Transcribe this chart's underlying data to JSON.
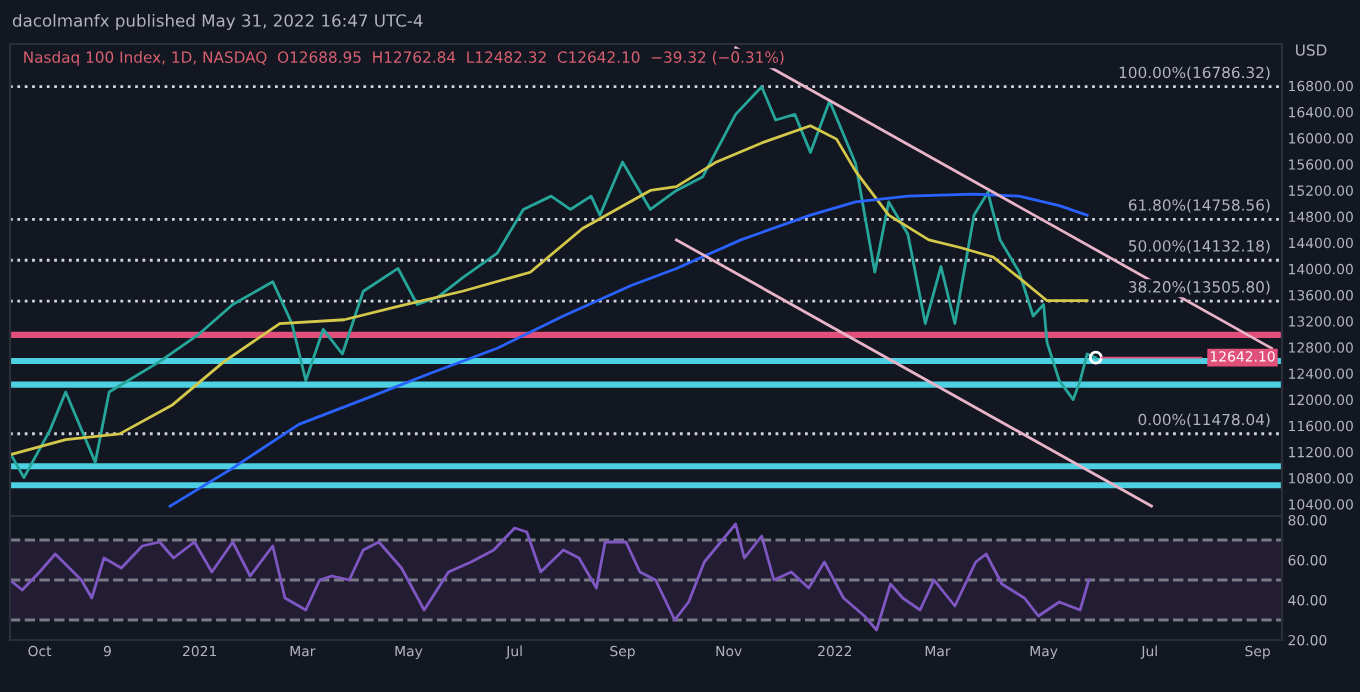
{
  "chart_data": [
    {
      "type": "line",
      "title": "Nasdaq 100 Index, 1D, NASDAQ  O12688.95  H12762.84  L12482.32  C12642.10  −39.32 (−0.31%)",
      "ylabel": "USD",
      "annotations": [
        "dacolmanfx published May 31, 2022 16:47 UTC-4",
        {
          "text": "12642.10",
          "x": "2022-05-31",
          "y": 12642.1
        }
      ],
      "series": [
        {
          "color": "#26a69a",
          "x": [
            "2020-09-14",
            "2020-09-22",
            "2020-10-07",
            "2020-10-16",
            "2020-11-02",
            "2020-11-10",
            "2020-12-09",
            "2020-12-31",
            "2021-01-20",
            "2021-02-12",
            "2021-02-23",
            "2021-03-03",
            "2021-03-13",
            "2021-03-24",
            "2021-04-05",
            "2021-04-25",
            "2021-05-06",
            "2021-05-18",
            "2021-06-01",
            "2021-06-21",
            "2021-07-06",
            "2021-07-22",
            "2021-08-02",
            "2021-08-14",
            "2021-08-19",
            "2021-09-01",
            "2021-09-17",
            "2021-10-02",
            "2021-10-17",
            "2021-11-05",
            "2021-11-20",
            "2021-11-28",
            "2021-12-09",
            "2021-12-18",
            "2021-12-29",
            "2022-01-13",
            "2022-01-24",
            "2022-02-01",
            "2022-02-12",
            "2022-02-22",
            "2022-03-03",
            "2022-03-11",
            "2022-03-22",
            "2022-03-30",
            "2022-04-06",
            "2022-04-17",
            "2022-04-25",
            "2022-05-01",
            "2022-05-03",
            "2022-05-10",
            "2022-05-18",
            "2022-05-22",
            "2022-05-26",
            "2022-05-31"
          ],
          "values": [
            11185,
            10807,
            11534,
            12116,
            11040,
            12116,
            12582,
            12989,
            13455,
            13804,
            13164,
            12291,
            13076,
            12698,
            13658,
            14007,
            13455,
            13571,
            13862,
            14240,
            14909,
            15113,
            14909,
            15113,
            14822,
            15636,
            14909,
            15200,
            15404,
            16364,
            16786,
            16277,
            16364,
            15782,
            16567,
            15607,
            13949,
            15025,
            14531,
            13164,
            14036,
            13164,
            14822,
            15171,
            14444,
            13949,
            13280,
            13455,
            12873,
            12291,
            12000,
            12291,
            12698,
            12642
          ]
        },
        {
          "color": "#d4c84a",
          "x": [
            "2020-09-14",
            "2020-10-16",
            "2020-11-16",
            "2020-12-16",
            "2021-01-15",
            "2021-02-16",
            "2021-03-25",
            "2021-04-25",
            "2021-06-01",
            "2021-07-10",
            "2021-08-09",
            "2021-09-17",
            "2021-10-02",
            "2021-10-25",
            "2021-11-20",
            "2021-12-18",
            "2022-01-02",
            "2022-01-13",
            "2022-02-01",
            "2022-02-24",
            "2022-03-14",
            "2022-04-02",
            "2022-04-17",
            "2022-05-03",
            "2022-05-26"
          ],
          "values": [
            11156,
            11389,
            11476,
            11913,
            12582,
            13164,
            13222,
            13426,
            13658,
            13949,
            14618,
            15200,
            15258,
            15636,
            15927,
            16189,
            15985,
            15491,
            14822,
            14444,
            14327,
            14182,
            13862,
            13513,
            13513
          ]
        },
        {
          "color": "#2962ff",
          "x": [
            "2020-12-15",
            "2021-01-20",
            "2021-02-27",
            "2021-04-05",
            "2021-05-14",
            "2021-06-21",
            "2021-07-29",
            "2021-09-06",
            "2021-10-02",
            "2021-11-08",
            "2021-12-18",
            "2022-01-13",
            "2022-02-12",
            "2022-03-22",
            "2022-04-17",
            "2022-05-10",
            "2022-05-26"
          ],
          "values": [
            10371,
            10953,
            11622,
            12000,
            12407,
            12785,
            13280,
            13745,
            14007,
            14444,
            14822,
            15025,
            15113,
            15142,
            15113,
            14967,
            14822
          ]
        },
        {
          "color": "#e8b4c8",
          "x": [
            "2021-11-05",
            "2022-09-09"
          ],
          "values": [
            17382,
            12786
          ]
        },
        {
          "color": "#e8b4c8",
          "x": [
            "2021-10-02",
            "2022-07-02"
          ],
          "values": [
            14444,
            10371
          ]
        }
      ],
      "ref_lines": [
        {
          "axis": "y",
          "value": 16786.32,
          "label": "100.00%(16786.32)",
          "color": "#d1d4dc",
          "line_style": "dotted"
        },
        {
          "axis": "y",
          "value": 14758.56,
          "label": "61.80%(14758.56)",
          "color": "#d1d4dc",
          "line_style": "dotted"
        },
        {
          "axis": "y",
          "value": 14132.18,
          "label": "50.00%(14132.18)",
          "color": "#d1d4dc",
          "line_style": "dotted"
        },
        {
          "axis": "y",
          "value": 13505.8,
          "label": "38.20%(13505.80)",
          "color": "#d1d4dc",
          "line_style": "dotted"
        },
        {
          "axis": "y",
          "value": 11478.04,
          "label": "0.00%(11478.04)",
          "color": "#d1d4dc",
          "line_style": "dotted"
        },
        {
          "axis": "y",
          "value": 12990,
          "color": "#e0507a",
          "line_style": "solid"
        },
        {
          "axis": "y",
          "value": 12590,
          "color": "#4dd0e1",
          "line_style": "solid"
        },
        {
          "axis": "y",
          "value": 12230,
          "color": "#4dd0e1",
          "line_style": "solid"
        },
        {
          "axis": "y",
          "value": 10980,
          "color": "#4dd0e1",
          "line_style": "solid"
        },
        {
          "axis": "y",
          "value": 10690,
          "color": "#4dd0e1",
          "line_style": "solid"
        }
      ],
      "xlim": [
        "2020-09-14",
        "2022-09-15"
      ],
      "ylim": [
        10220,
        17440
      ],
      "yticks": [
        {
          "value": 10400,
          "label": "10400.00"
        },
        {
          "value": 10800,
          "label": "10800.00"
        },
        {
          "value": 11200,
          "label": "11200.00"
        },
        {
          "value": 11600,
          "label": "11600.00"
        },
        {
          "value": 12000,
          "label": "12000.00"
        },
        {
          "value": 12400,
          "label": "12400.00"
        },
        {
          "value": 12800,
          "label": "12800.00"
        },
        {
          "value": 13200,
          "label": "13200.00"
        },
        {
          "value": 13600,
          "label": "13600.00"
        },
        {
          "value": 14000,
          "label": "14000.00"
        },
        {
          "value": 14400,
          "label": "14400.00"
        },
        {
          "value": 14800,
          "label": "14800.00"
        },
        {
          "value": 15200,
          "label": "15200.00"
        },
        {
          "value": 15600,
          "label": "15600.00"
        },
        {
          "value": 16000,
          "label": "16000.00"
        },
        {
          "value": 16400,
          "label": "16400.00"
        },
        {
          "value": 16800,
          "label": "16800.00"
        }
      ],
      "tick_labels": "y",
      "grid": false,
      "legend": false
    },
    {
      "type": "line",
      "series": [
        {
          "color": "#7e57c2",
          "x": [
            "2020-09-14",
            "2020-09-21",
            "2020-10-01",
            "2020-10-10",
            "2020-10-25",
            "2020-10-31",
            "2020-11-07",
            "2020-11-17",
            "2020-11-29",
            "2020-12-09",
            "2020-12-17",
            "2020-12-29",
            "2021-01-08",
            "2021-01-20",
            "2021-01-30",
            "2021-02-12",
            "2021-02-19",
            "2021-03-03",
            "2021-03-11",
            "2021-03-18",
            "2021-03-28",
            "2021-04-05",
            "2021-04-14",
            "2021-04-27",
            "2021-05-10",
            "2021-05-24",
            "2021-06-06",
            "2021-06-19",
            "2021-07-01",
            "2021-07-08",
            "2021-07-16",
            "2021-07-29",
            "2021-08-07",
            "2021-08-17",
            "2021-08-22",
            "2021-09-03",
            "2021-09-11",
            "2021-09-20",
            "2021-10-01",
            "2021-10-09",
            "2021-10-18",
            "2021-11-05",
            "2021-11-10",
            "2021-11-20",
            "2021-11-27",
            "2021-12-07",
            "2021-12-17",
            "2021-12-26",
            "2022-01-06",
            "2022-01-18",
            "2022-01-25",
            "2022-02-02",
            "2022-02-09",
            "2022-02-19",
            "2022-02-27",
            "2022-03-11",
            "2022-03-23",
            "2022-03-29",
            "2022-04-07",
            "2022-04-20",
            "2022-04-28",
            "2022-05-10",
            "2022-05-22",
            "2022-05-27"
          ],
          "values": [
            50,
            45,
            54,
            63,
            50,
            41,
            61,
            56,
            67,
            69,
            61,
            69,
            54,
            69,
            52,
            67,
            41,
            35,
            50,
            52,
            50,
            65,
            69,
            56,
            35,
            54,
            59,
            65,
            76,
            74,
            54,
            65,
            61,
            46,
            69,
            69,
            54,
            50,
            30,
            39,
            59,
            78,
            61,
            72,
            50,
            54,
            46,
            59,
            41,
            32,
            25,
            48,
            41,
            35,
            50,
            37,
            59,
            63,
            48,
            41,
            32,
            39,
            35,
            50
          ]
        }
      ],
      "bands": [
        {
          "axis": "y",
          "from": 30,
          "to": 70,
          "color": "#231d33"
        }
      ],
      "ref_lines": [
        {
          "axis": "y",
          "value": 70,
          "color": "#787b86",
          "line_style": "dashed"
        },
        {
          "axis": "y",
          "value": 50,
          "color": "#787b86",
          "line_style": "dashed"
        },
        {
          "axis": "y",
          "value": 30,
          "color": "#787b86",
          "line_style": "dashed"
        }
      ],
      "xlim": [
        "2020-09-14",
        "2022-09-15"
      ],
      "ylim": [
        20,
        82
      ],
      "xticks": [
        {
          "value": "2020-10-01",
          "label": "Oct"
        },
        {
          "value": "2020-11-09",
          "label": "9"
        },
        {
          "value": "2021-01-01",
          "label": "2021"
        },
        {
          "value": "2021-03-01",
          "label": "Mar"
        },
        {
          "value": "2021-05-01",
          "label": "May"
        },
        {
          "value": "2021-07-01",
          "label": "Jul"
        },
        {
          "value": "2021-09-01",
          "label": "Sep"
        },
        {
          "value": "2021-11-01",
          "label": "Nov"
        },
        {
          "value": "2022-01-01",
          "label": "2022"
        },
        {
          "value": "2022-03-01",
          "label": "Mar"
        },
        {
          "value": "2022-05-01",
          "label": "May"
        },
        {
          "value": "2022-07-01",
          "label": "Jul"
        },
        {
          "value": "2022-09-01",
          "label": "Sep"
        }
      ],
      "yticks": [
        {
          "value": 20,
          "label": "20.00"
        },
        {
          "value": 40,
          "label": "40.00"
        },
        {
          "value": 60,
          "label": "60.00"
        },
        {
          "value": 80,
          "label": "80.00"
        }
      ],
      "grid": false,
      "legend": false
    }
  ]
}
